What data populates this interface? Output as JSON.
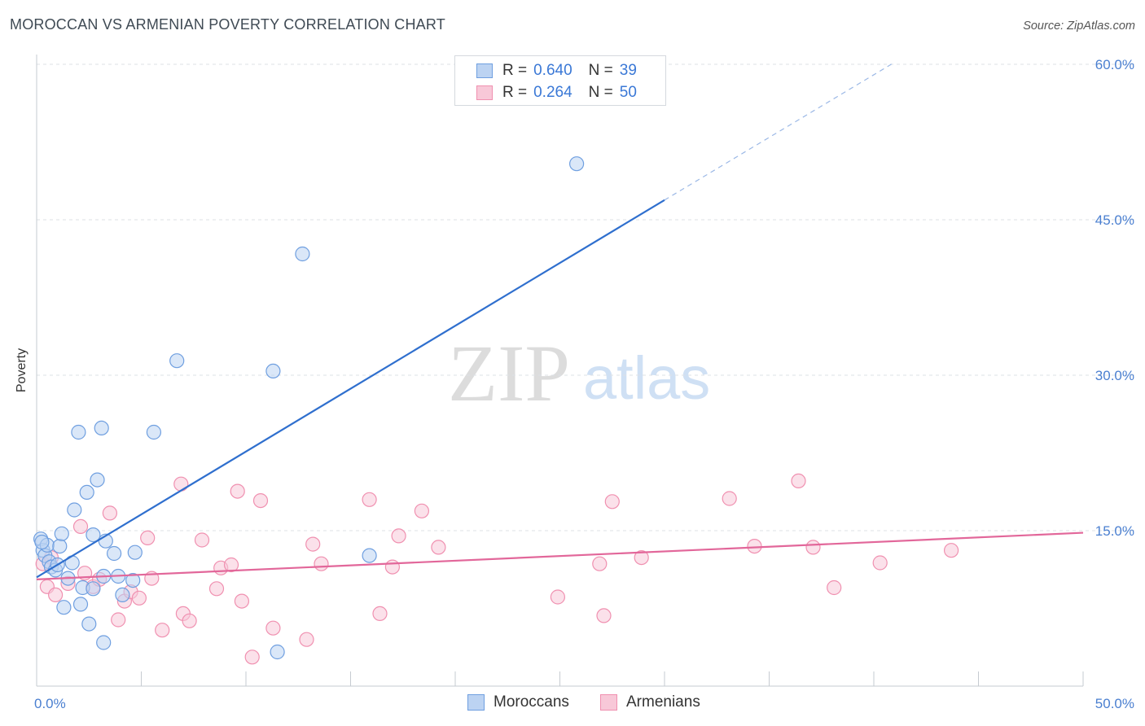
{
  "title": "MOROCCAN VS ARMENIAN POVERTY CORRELATION CHART",
  "source": "Source: ZipAtlas.com",
  "watermark": {
    "zip": "ZIP",
    "atlas": "atlas"
  },
  "legend": {
    "rows": [
      {
        "r_label": "R = ",
        "r_value": "0.640",
        "n_label": "N = ",
        "n_value": "39"
      },
      {
        "r_label": "R = ",
        "r_value": "0.264",
        "n_label": "N = ",
        "n_value": "50"
      }
    ]
  },
  "chart_data": {
    "type": "scatter",
    "title": "MOROCCAN VS ARMENIAN POVERTY CORRELATION CHART",
    "xlabel": "",
    "ylabel": "Poverty",
    "xlim": [
      0,
      50
    ],
    "ylim": [
      0,
      62
    ],
    "x_tick_labels": [
      "0.0%",
      "50.0%"
    ],
    "y_ticks": [
      15,
      30,
      45,
      60
    ],
    "y_tick_labels": [
      "15.0%",
      "30.0%",
      "45.0%",
      "60.0%"
    ],
    "grid": true,
    "legend_position": "top-center",
    "series": [
      {
        "name": "Moroccans",
        "color": "#6f9fe0",
        "fill": "#bcd3f2",
        "r": 0.64,
        "n": 39,
        "trend": {
          "x0": 0.0,
          "y0": 10.5,
          "x1": 30.0,
          "y1": 46.9,
          "dashed_to_x": 41.0,
          "dashed_to_y": 60.2,
          "color": "#2f6fce"
        },
        "points": [
          [
            0.2,
            14.2
          ],
          [
            0.3,
            13.1
          ],
          [
            0.4,
            12.6
          ],
          [
            0.5,
            13.6
          ],
          [
            0.6,
            12.0
          ],
          [
            0.7,
            11.5
          ],
          [
            0.9,
            11.2
          ],
          [
            1.0,
            11.7
          ],
          [
            1.1,
            13.5
          ],
          [
            1.2,
            14.7
          ],
          [
            1.3,
            7.6
          ],
          [
            1.5,
            10.4
          ],
          [
            1.7,
            11.9
          ],
          [
            1.8,
            17.0
          ],
          [
            2.0,
            24.5
          ],
          [
            2.1,
            7.9
          ],
          [
            2.2,
            9.5
          ],
          [
            2.4,
            18.7
          ],
          [
            2.5,
            6.0
          ],
          [
            2.7,
            9.4
          ],
          [
            2.7,
            14.6
          ],
          [
            2.9,
            19.9
          ],
          [
            3.1,
            24.9
          ],
          [
            3.2,
            4.2
          ],
          [
            3.2,
            10.6
          ],
          [
            3.3,
            14.0
          ],
          [
            3.7,
            12.8
          ],
          [
            3.9,
            10.6
          ],
          [
            4.1,
            8.8
          ],
          [
            4.6,
            10.2
          ],
          [
            4.7,
            12.9
          ],
          [
            5.6,
            24.5
          ],
          [
            6.7,
            31.4
          ],
          [
            11.3,
            30.4
          ],
          [
            11.5,
            3.3
          ],
          [
            12.7,
            41.7
          ],
          [
            15.9,
            12.6
          ],
          [
            25.8,
            50.4
          ],
          [
            0.25,
            13.9
          ]
        ]
      },
      {
        "name": "Armenians",
        "color": "#f090b0",
        "fill": "#f8c8d8",
        "r": 0.264,
        "n": 50,
        "trend": {
          "x0": 0.0,
          "y0": 10.3,
          "x1": 50.0,
          "y1": 14.8,
          "color": "#e2679a"
        },
        "points": [
          [
            0.3,
            11.8
          ],
          [
            0.5,
            9.6
          ],
          [
            0.7,
            12.4
          ],
          [
            0.9,
            8.8
          ],
          [
            1.5,
            9.9
          ],
          [
            2.1,
            15.4
          ],
          [
            2.3,
            10.9
          ],
          [
            2.7,
            9.6
          ],
          [
            3.0,
            10.3
          ],
          [
            3.5,
            16.7
          ],
          [
            3.9,
            6.4
          ],
          [
            4.2,
            8.2
          ],
          [
            4.5,
            9.1
          ],
          [
            4.9,
            8.5
          ],
          [
            5.3,
            14.3
          ],
          [
            5.5,
            10.4
          ],
          [
            6.0,
            5.4
          ],
          [
            6.9,
            19.5
          ],
          [
            7.0,
            7.0
          ],
          [
            7.3,
            6.3
          ],
          [
            7.9,
            14.1
          ],
          [
            8.6,
            9.4
          ],
          [
            8.8,
            11.4
          ],
          [
            9.3,
            11.7
          ],
          [
            9.6,
            18.8
          ],
          [
            9.8,
            8.2
          ],
          [
            10.3,
            2.8
          ],
          [
            10.7,
            17.9
          ],
          [
            11.3,
            5.6
          ],
          [
            12.9,
            4.5
          ],
          [
            13.2,
            13.7
          ],
          [
            13.6,
            11.8
          ],
          [
            15.9,
            18.0
          ],
          [
            16.4,
            7.0
          ],
          [
            17.0,
            11.5
          ],
          [
            17.3,
            14.5
          ],
          [
            18.4,
            16.9
          ],
          [
            19.2,
            13.4
          ],
          [
            24.9,
            8.6
          ],
          [
            26.9,
            11.8
          ],
          [
            27.1,
            6.8
          ],
          [
            27.5,
            17.8
          ],
          [
            28.9,
            12.4
          ],
          [
            33.1,
            18.1
          ],
          [
            34.3,
            13.5
          ],
          [
            36.4,
            19.8
          ],
          [
            37.1,
            13.4
          ],
          [
            38.1,
            9.5
          ],
          [
            40.3,
            11.9
          ],
          [
            43.7,
            13.1
          ]
        ]
      }
    ]
  },
  "bottom_legend": {
    "items": [
      {
        "label": "Moroccans"
      },
      {
        "label": "Armenians"
      }
    ]
  }
}
